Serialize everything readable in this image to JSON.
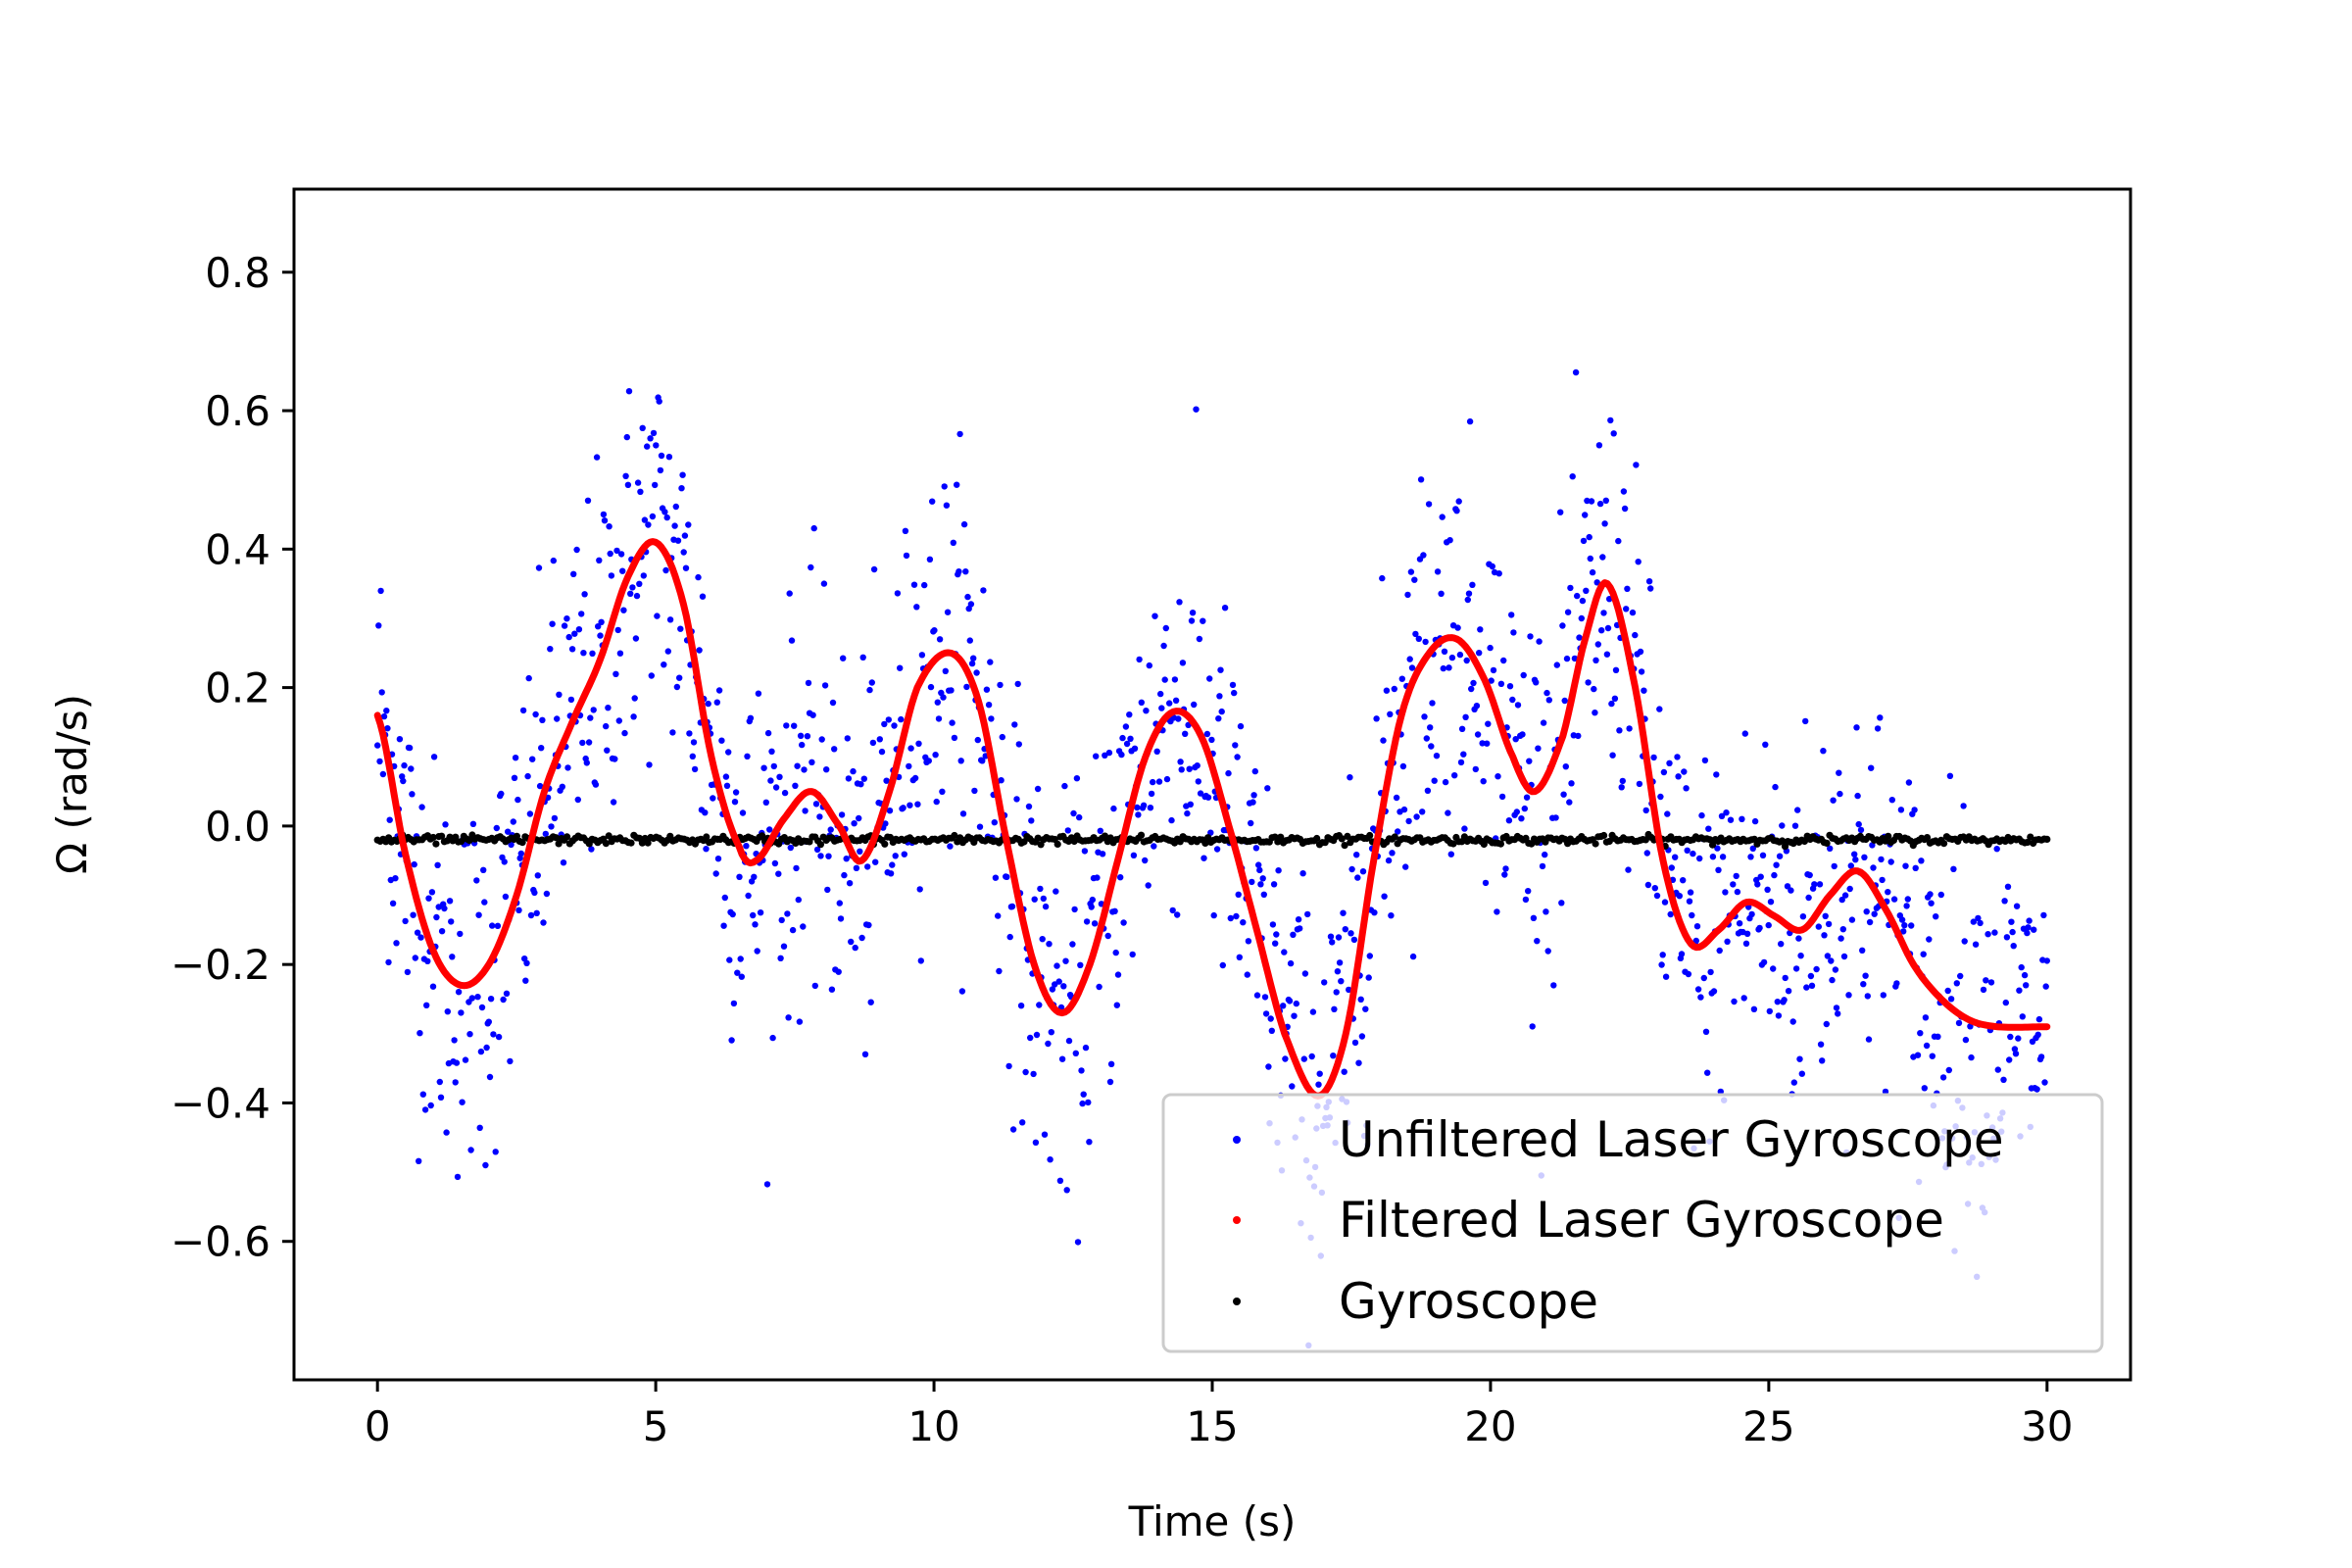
{
  "chart_data": {
    "type": "scatter",
    "title": "",
    "xlabel": "Time (s)",
    "ylabel": "Ω (rad/s)",
    "xlim": [
      -1.5,
      31.5
    ],
    "ylim": [
      -0.8,
      0.92
    ],
    "x_ticks": [
      0,
      5,
      10,
      15,
      20,
      25,
      30
    ],
    "x_tick_labels": [
      "0",
      "5",
      "10",
      "15",
      "20",
      "25",
      "30"
    ],
    "y_ticks": [
      -0.6,
      -0.4,
      -0.2,
      0.0,
      0.2,
      0.4,
      0.6,
      0.8
    ],
    "y_tick_labels": [
      "−0.6",
      "−0.4",
      "−0.2",
      "0.0",
      "0.2",
      "0.4",
      "0.6",
      "0.8"
    ],
    "grid": false,
    "legend_position": "lower-right",
    "series": [
      {
        "name": "Unfiltered Laser Gyroscope",
        "kind": "points",
        "color": "#0000ff",
        "noise_std": 0.14,
        "x_range": [
          0,
          30
        ],
        "n_points": 1500
      },
      {
        "name": "Filtered Laser Gyroscope",
        "kind": "curve",
        "color": "#ff0000",
        "points": [
          [
            0,
            0.16
          ],
          [
            0.5,
            -0.04
          ],
          [
            1.0,
            -0.18
          ],
          [
            1.5,
            -0.23
          ],
          [
            2.0,
            -0.2
          ],
          [
            2.5,
            -0.1
          ],
          [
            3.0,
            0.05
          ],
          [
            3.5,
            0.15
          ],
          [
            4.0,
            0.24
          ],
          [
            4.5,
            0.36
          ],
          [
            5.0,
            0.41
          ],
          [
            5.5,
            0.32
          ],
          [
            6.0,
            0.1
          ],
          [
            6.5,
            -0.03
          ],
          [
            6.8,
            -0.05
          ],
          [
            7.3,
            0.01
          ],
          [
            7.8,
            0.05
          ],
          [
            8.3,
            0.0
          ],
          [
            8.7,
            -0.05
          ],
          [
            9.2,
            0.05
          ],
          [
            9.7,
            0.2
          ],
          [
            10.3,
            0.25
          ],
          [
            10.8,
            0.18
          ],
          [
            11.3,
            -0.02
          ],
          [
            11.8,
            -0.2
          ],
          [
            12.3,
            -0.27
          ],
          [
            12.8,
            -0.2
          ],
          [
            13.3,
            -0.05
          ],
          [
            13.8,
            0.1
          ],
          [
            14.3,
            0.165
          ],
          [
            14.8,
            0.13
          ],
          [
            15.3,
            0.0
          ],
          [
            15.8,
            -0.15
          ],
          [
            16.3,
            -0.3
          ],
          [
            16.9,
            -0.39
          ],
          [
            17.4,
            -0.3
          ],
          [
            17.9,
            -0.05
          ],
          [
            18.4,
            0.16
          ],
          [
            18.9,
            0.25
          ],
          [
            19.4,
            0.27
          ],
          [
            19.9,
            0.21
          ],
          [
            20.4,
            0.1
          ],
          [
            20.8,
            0.05
          ],
          [
            21.3,
            0.13
          ],
          [
            21.7,
            0.27
          ],
          [
            22.1,
            0.35
          ],
          [
            22.6,
            0.2
          ],
          [
            23.1,
            -0.05
          ],
          [
            23.6,
            -0.17
          ],
          [
            24.1,
            -0.15
          ],
          [
            24.6,
            -0.11
          ],
          [
            25.1,
            -0.13
          ],
          [
            25.6,
            -0.15
          ],
          [
            26.1,
            -0.1
          ],
          [
            26.6,
            -0.065
          ],
          [
            27.1,
            -0.12
          ],
          [
            27.6,
            -0.2
          ],
          [
            28.1,
            -0.25
          ],
          [
            28.6,
            -0.28
          ],
          [
            29.1,
            -0.29
          ],
          [
            30.0,
            -0.29
          ]
        ]
      },
      {
        "name": "Gyroscope",
        "kind": "points",
        "color": "#000000",
        "constant_value": -0.02,
        "noise_std": 0.003,
        "x_range": [
          0,
          30
        ],
        "n_points": 600
      }
    ]
  }
}
